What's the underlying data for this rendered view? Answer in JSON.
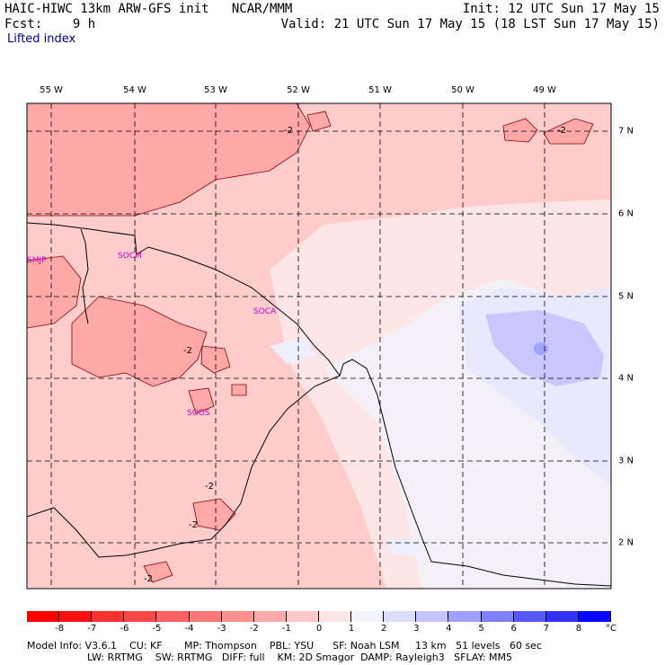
{
  "header": {
    "title_left": "HAIC-HIWC 13km ARW-GFS init   NCAR/MMM",
    "fcst": "Fcst:    9 h",
    "init": "Init: 12 UTC Sun 17 May 15",
    "valid": "Valid: 21 UTC Sun 17 May 15 (18 LST Sun 17 May 15)",
    "field": "Lifted index"
  },
  "map": {
    "lon_labels": [
      "55 W",
      "54 W",
      "53 W",
      "52 W",
      "51 W",
      "50 W",
      "49 W"
    ],
    "lat_labels": [
      "7 N",
      "6 N",
      "5 N",
      "4 N",
      "3 N",
      "2 N"
    ],
    "stations": [
      "SMJP",
      "SOCM",
      "SOCA",
      "SOOS"
    ],
    "contour_labels": [
      "-2",
      "-2",
      "-2",
      "-2",
      "-2",
      "-2"
    ]
  },
  "colorbar": {
    "ticks": [
      "-8",
      "-7",
      "-6",
      "-5",
      "-4",
      "-3",
      "-2",
      "-1",
      "0",
      "1",
      "2",
      "3",
      "4",
      "5",
      "6",
      "7",
      "8"
    ],
    "unit": "°C",
    "colors": [
      "#ff1010",
      "#ff3030",
      "#ff4848",
      "#ff6060",
      "#ff7878",
      "#ff9090",
      "#ffaaaa",
      "#ffc8c8",
      "#ffe6e6",
      "#f4f4ff",
      "#dcdcff",
      "#c4c4ff",
      "#a0a0ff",
      "#8080ff",
      "#5858ff",
      "#3030ff",
      "#0808ff"
    ]
  },
  "footer": {
    "line1": "Model Info: V3.6.1    CU: KF       MP: Thompson    PBL: YSU      SF: Noah LSM     13 km   51 levels   60 sec",
    "line2": "LW: RRTMG    SW: RRTMG   DIFF: full    KM: 2D Smagor  DAMP: Rayleigh3   SFLAY: MM5"
  }
}
